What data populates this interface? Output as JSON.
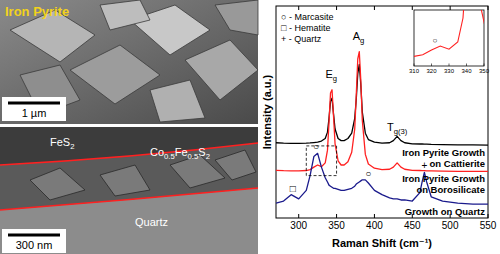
{
  "panels": {
    "top": {
      "title": "Iron Pyrite",
      "scale_bar": "1 µm"
    },
    "bottom": {
      "labels": [
        {
          "segments": [
            {
              "t": "FeS"
            },
            {
              "sub": "2"
            }
          ]
        },
        {
          "segments": [
            {
              "t": "Co"
            },
            {
              "sub": "0.5"
            },
            {
              "t": "Fe"
            },
            {
              "sub": "0.5"
            },
            {
              "t": "S"
            },
            {
              "sub": "2"
            }
          ]
        },
        {
          "segments": [
            {
              "t": "Quartz"
            }
          ]
        }
      ],
      "scale_bar": "300 nm"
    }
  },
  "chart_data": {
    "type": "line",
    "x_label": "Raman Shift (cm⁻¹)",
    "y_label": "Intensity (a.u.)",
    "xlim": [
      270,
      550
    ],
    "xticks": [
      300,
      350,
      400,
      450,
      500,
      550
    ],
    "ylim": [
      0,
      100
    ],
    "tick_labels": "x",
    "grid": false,
    "legend": "upper left",
    "legend_entries": [
      "○ - Marcasite",
      "□ - Hematite",
      "+ - Quartz"
    ],
    "x": [
      270,
      280,
      290,
      300,
      310,
      315,
      320,
      325,
      330,
      335,
      338,
      340,
      342,
      344,
      346,
      348,
      352,
      356,
      360,
      365,
      370,
      374,
      376,
      378,
      380,
      382,
      384,
      388,
      392,
      400,
      410,
      420,
      425,
      430,
      435,
      440,
      450,
      460,
      463,
      466,
      469,
      475,
      490,
      510,
      530,
      550
    ],
    "series": [
      {
        "name": "Iron Pyrite Growth on Cattierite",
        "color": "#000000",
        "values": [
          35.5,
          35.3,
          35.2,
          35.2,
          35.3,
          35.4,
          35.6,
          35.8,
          36.3,
          37.5,
          40.5,
          47,
          55,
          56.5,
          49,
          42,
          37.5,
          36.5,
          36.5,
          37.5,
          40,
          47,
          56,
          68,
          72.5,
          63,
          50,
          40,
          37,
          35.8,
          35.3,
          35.5,
          36.5,
          38.5,
          36.5,
          35.5,
          35,
          34.9,
          34.9,
          34.8,
          34.8,
          34.7,
          34.6,
          34.5,
          34.5,
          34.4
        ]
      },
      {
        "name": "Iron Pyrite Growth on Borosilicate",
        "color": "#ff2020",
        "values": [
          22.5,
          22.3,
          22.2,
          22.2,
          22.4,
          22.8,
          24,
          25,
          24.2,
          26,
          32,
          45,
          59,
          60.5,
          48,
          35,
          27,
          25,
          25,
          26.5,
          31,
          42,
          58,
          75,
          78.5,
          65,
          46,
          30,
          25.5,
          23.5,
          22.8,
          23,
          24,
          26,
          24,
          23,
          22.5,
          22.4,
          22.3,
          22.3,
          22.2,
          22.2,
          22.1,
          22,
          22,
          22
        ]
      },
      {
        "name": "Growth on Quartz",
        "color": "#1a1a8c",
        "values": [
          7,
          8,
          11,
          9,
          13,
          20,
          29,
          30.5,
          24,
          19,
          17,
          15.5,
          15,
          14.5,
          14,
          14,
          13.5,
          13,
          13,
          13.5,
          14,
          15,
          16,
          16.5,
          17,
          17.5,
          18,
          18,
          16.5,
          13,
          11,
          9.5,
          9,
          9,
          8.5,
          8.5,
          8,
          12,
          17,
          21.5,
          17,
          10,
          8,
          7,
          6.5,
          6.5
        ]
      }
    ],
    "peak_labels": [
      {
        "text": "E",
        "subscript": "g",
        "x": 343,
        "y": 66
      },
      {
        "text": "A",
        "subscript": "g",
        "x": 379,
        "y": 84
      },
      {
        "text": "T",
        "subscript": "g(3)",
        "x": 430,
        "y": 41
      }
    ],
    "markers": [
      {
        "text": "○",
        "x": 323,
        "y": 33.5
      },
      {
        "text": "○",
        "x": 392,
        "y": 21
      },
      {
        "text": "□",
        "x": 292,
        "y": 14
      },
      {
        "text": "+",
        "x": 466,
        "y": 25
      }
    ],
    "inset": {
      "xlim": [
        310,
        350
      ],
      "ylim": [
        20,
        34
      ],
      "xticks": [
        310,
        320,
        330,
        340,
        350
      ],
      "series": 1,
      "markers": [
        {
          "text": "○",
          "x": 322,
          "y": 26.5
        }
      ]
    }
  }
}
